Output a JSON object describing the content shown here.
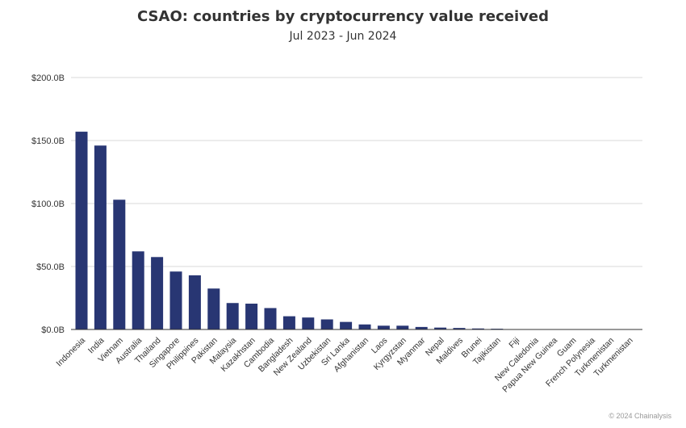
{
  "chart_data": {
    "type": "bar",
    "title": "CSAO: countries by cryptocurrency value received",
    "subtitle": "Jul 2023 - Jun 2024",
    "xlabel": "",
    "ylabel": "",
    "ylim": [
      0,
      200
    ],
    "y_ticks": [
      0,
      50,
      100,
      150,
      200
    ],
    "y_tick_labels": [
      "$0.0B",
      "$50.0B",
      "$100.0B",
      "$150.0B",
      "$200.0B"
    ],
    "grid": true,
    "bar_color": "#283673",
    "categories": [
      "Indonesia",
      "India",
      "Vietnam",
      "Australia",
      "Thailand",
      "Singapore",
      "Philippines",
      "Pakistan",
      "Malaysia",
      "Kazakhstan",
      "Cambodia",
      "Bangladesh",
      "New Zealand",
      "Uzbekistan",
      "Sri Lanka",
      "Afghanistan",
      "Laos",
      "Kyrgyzstan",
      "Myanmar",
      "Nepal",
      "Maldives",
      "Brunei",
      "Tajikistan",
      "Fiji",
      "New Caledonia",
      "Papua New Guinea",
      "Guam",
      "French Polynesia",
      "Turkmenistan",
      "Turkmenistan"
    ],
    "values": [
      157,
      146,
      103,
      62,
      57.5,
      46,
      43,
      32.5,
      21,
      20.5,
      17,
      10.5,
      9.5,
      8,
      6,
      4,
      3,
      3,
      2,
      1.5,
      1.2,
      0.8,
      0.6,
      0.3,
      0.2,
      0.15,
      0.1,
      0.1,
      0.05,
      0.05
    ]
  },
  "credit": "© 2024 Chainalysis"
}
